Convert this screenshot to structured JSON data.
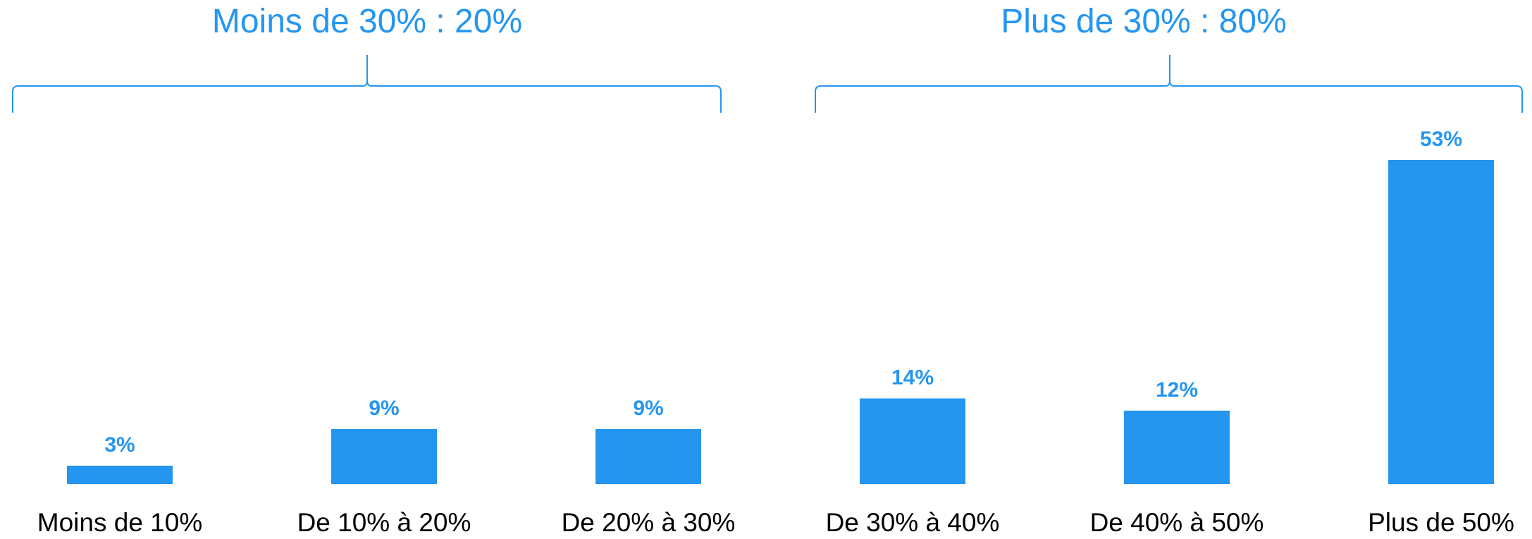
{
  "colors": {
    "bar": "#2596f0",
    "accent": "#2596f0",
    "text": "#000000"
  },
  "groups": [
    {
      "label": "Moins de 30% : 20%",
      "category_range": [
        0,
        2
      ]
    },
    {
      "label": "Plus de 30% : 80%",
      "category_range": [
        3,
        5
      ]
    }
  ],
  "chart_data": {
    "type": "bar",
    "title": "",
    "xlabel": "",
    "ylabel": "",
    "grid": false,
    "categories": [
      "Moins de 10%",
      "De 10% à 20%",
      "De 20% à 30%",
      "De 30% à 40%",
      "De 40% à 50%",
      "Plus de 50%"
    ],
    "values": [
      3,
      9,
      9,
      14,
      12,
      53
    ],
    "value_labels": [
      "3%",
      "9%",
      "9%",
      "14%",
      "12%",
      "53%"
    ],
    "ylim": [
      0,
      53
    ]
  }
}
